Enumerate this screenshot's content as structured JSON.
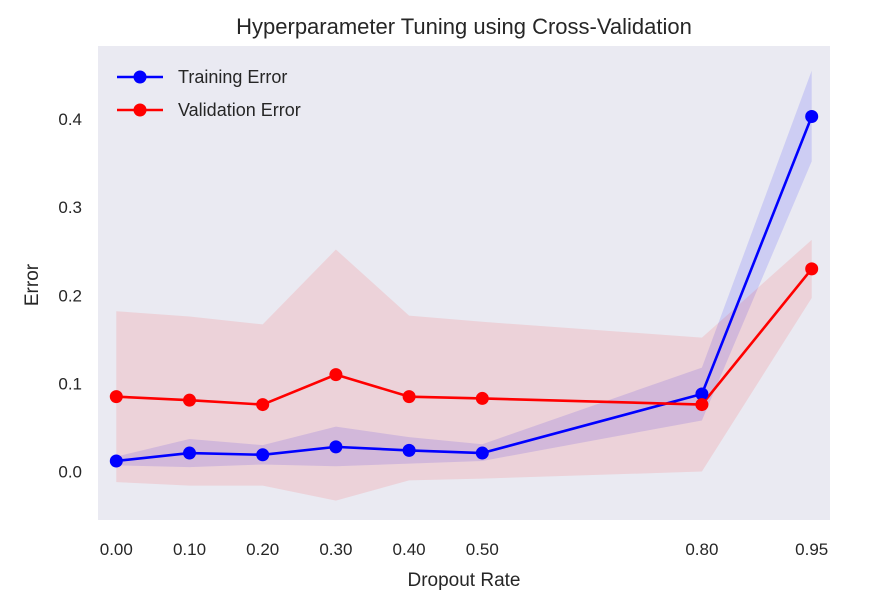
{
  "chart_data": {
    "type": "line",
    "title": "Hyperparameter Tuning using Cross-Validation",
    "xlabel": "Dropout Rate",
    "ylabel": "Error",
    "x": [
      0.0,
      0.1,
      0.2,
      0.3,
      0.4,
      0.5,
      0.8,
      0.95
    ],
    "x_tick_labels": [
      "0.00",
      "0.10",
      "0.20",
      "0.30",
      "0.40",
      "0.50",
      "0.80",
      "0.95"
    ],
    "y_ticks": [
      0.0,
      0.1,
      0.2,
      0.3,
      0.4
    ],
    "y_tick_labels": [
      "0.0",
      "0.1",
      "0.2",
      "0.3",
      "0.4"
    ],
    "xlim": [
      -0.025,
      0.975
    ],
    "ylim": [
      -0.055,
      0.483
    ],
    "grid": false,
    "legend_position": "top-left",
    "background_color": "#eaeaf2",
    "series": [
      {
        "name": "Training Error",
        "color": "#0000ff",
        "values": [
          0.012,
          0.021,
          0.019,
          0.028,
          0.024,
          0.021,
          0.088,
          0.403
        ],
        "band_lower": [
          0.007,
          0.005,
          0.008,
          0.006,
          0.009,
          0.012,
          0.058,
          0.352
        ],
        "band_upper": [
          0.017,
          0.037,
          0.03,
          0.051,
          0.039,
          0.031,
          0.118,
          0.455
        ]
      },
      {
        "name": "Validation Error",
        "color": "#ff0000",
        "values": [
          0.085,
          0.081,
          0.076,
          0.11,
          0.085,
          0.083,
          0.076,
          0.23
        ],
        "band_lower": [
          -0.012,
          -0.016,
          -0.016,
          -0.033,
          -0.01,
          -0.008,
          0.0,
          0.197
        ],
        "band_upper": [
          0.182,
          0.176,
          0.167,
          0.252,
          0.177,
          0.17,
          0.152,
          0.263
        ]
      }
    ]
  }
}
